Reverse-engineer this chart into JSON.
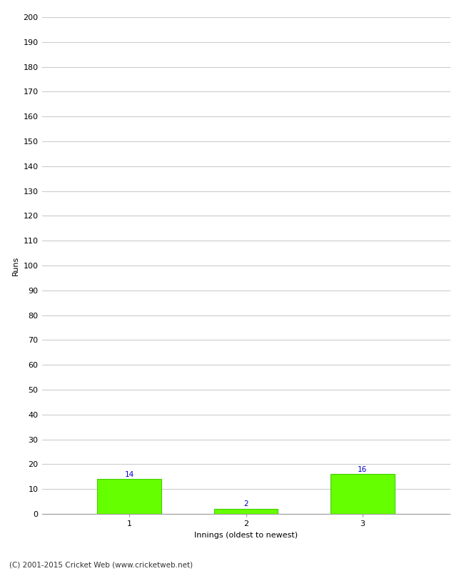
{
  "categories": [
    "1",
    "2",
    "3"
  ],
  "values": [
    14,
    2,
    16
  ],
  "bar_color": "#66ff00",
  "bar_edge_color": "#44cc00",
  "xlabel": "Innings (oldest to newest)",
  "ylabel": "Runs",
  "ylim": [
    0,
    200
  ],
  "yticks": [
    0,
    10,
    20,
    30,
    40,
    50,
    60,
    70,
    80,
    90,
    100,
    110,
    120,
    130,
    140,
    150,
    160,
    170,
    180,
    190,
    200
  ],
  "label_color": "#0000cc",
  "label_fontsize": 7.5,
  "axis_label_fontsize": 8,
  "tick_fontsize": 8,
  "footer_text": "(C) 2001-2015 Cricket Web (www.cricketweb.net)",
  "footer_fontsize": 7.5,
  "background_color": "#ffffff",
  "grid_color": "#cccccc",
  "bar_width": 0.55
}
